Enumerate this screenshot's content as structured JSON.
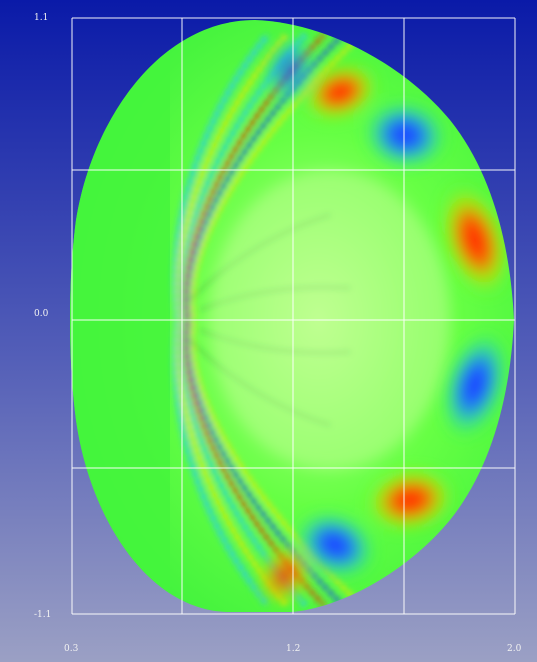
{
  "chart_data": {
    "type": "heatmap",
    "title": "",
    "xlabel": "",
    "ylabel": "",
    "xlim": [
      0.3,
      2.0
    ],
    "ylim": [
      -1.1,
      1.1
    ],
    "x_tick_labels": [
      "0.3",
      "1.2",
      "2.0"
    ],
    "y_tick_labels": [
      "1.1",
      "0.0",
      "-1.1"
    ],
    "grid": true,
    "colormap": [
      "#1a3cff",
      "#25c8ff",
      "#3cff3c",
      "#ffe600",
      "#ff2200"
    ],
    "field": "poloidal cross-section wave amplitude, signed (-1 blue .. 0 green .. +1 red)",
    "background_gradient": [
      "#0a1aa8",
      "#9ba0c4"
    ]
  }
}
